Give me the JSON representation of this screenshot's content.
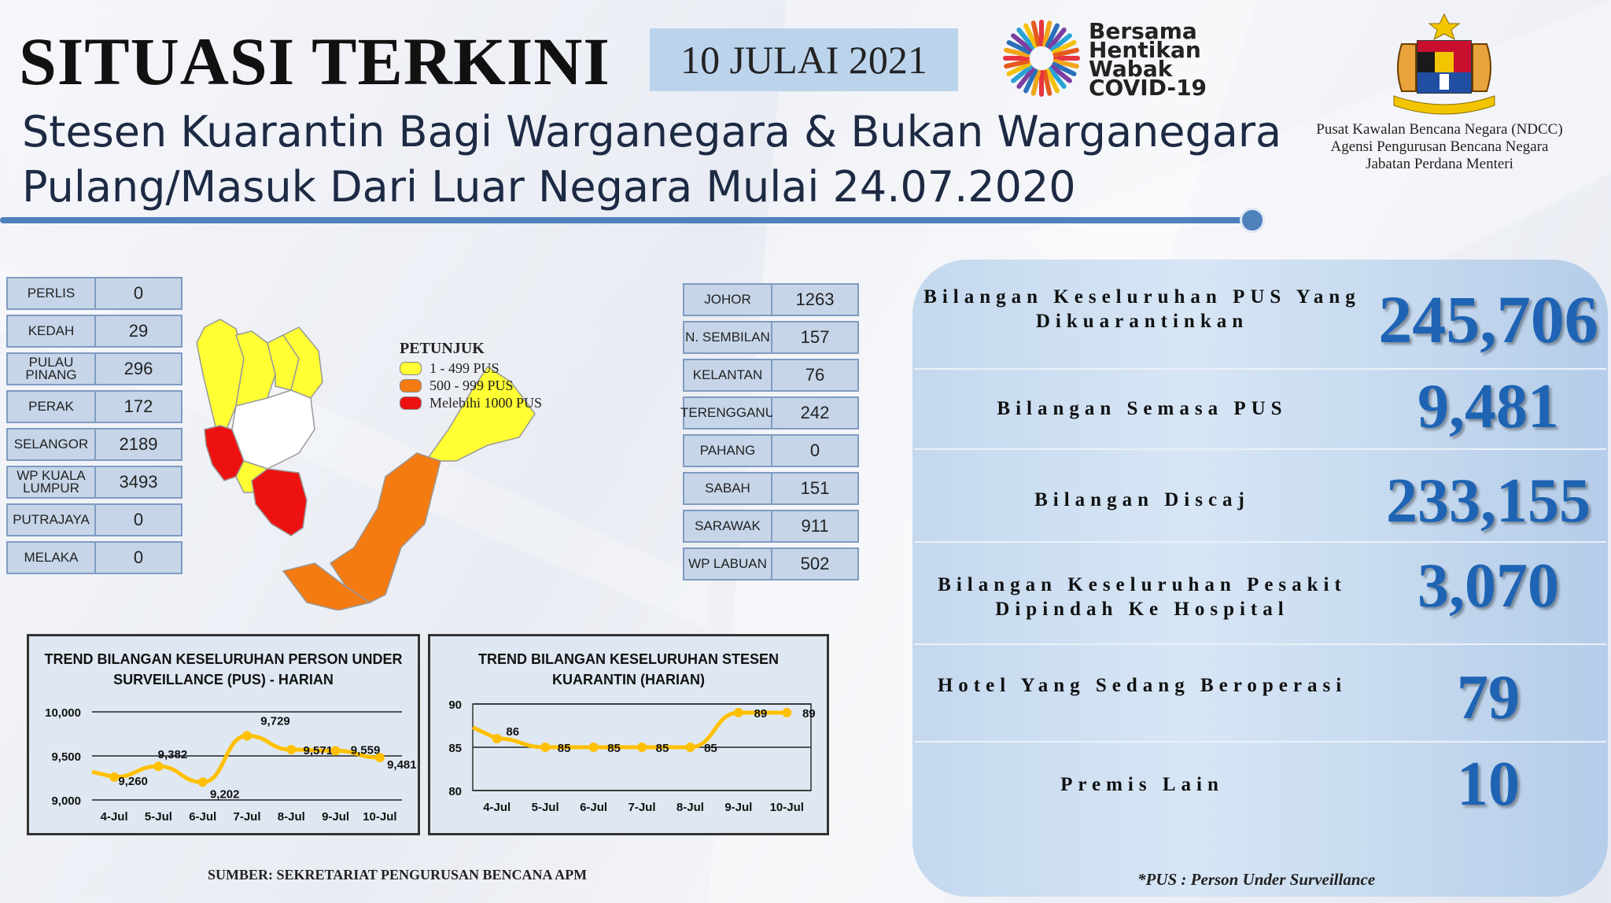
{
  "header": {
    "title": "SITUASI TERKINI",
    "date": "10 JULAI 2021",
    "subtitle_line1": "Stesen Kuarantin Bagi Warganegara & Bukan Warganegara",
    "subtitle_line2": "Pulang/Masuk Dari Luar Negara Mulai 24.07.2020"
  },
  "campaign": {
    "line1": "Bersama",
    "line2": "Hentikan",
    "line3": "Wabak",
    "line4": "COVID-19"
  },
  "agency": {
    "line1": "Pusat Kawalan Bencana Negara (NDCC)",
    "line2": "Agensi Pengurusan Bencana Negara",
    "line3": "Jabatan Perdana Menteri"
  },
  "states_left": [
    {
      "name": "PERLIS",
      "value": "0"
    },
    {
      "name": "KEDAH",
      "value": "29"
    },
    {
      "name": "PULAU PINANG",
      "value": "296"
    },
    {
      "name": "PERAK",
      "value": "172"
    },
    {
      "name": "SELANGOR",
      "value": "2189"
    },
    {
      "name": "WP KUALA LUMPUR",
      "value": "3493"
    },
    {
      "name": "PUTRAJAYA",
      "value": "0"
    },
    {
      "name": "MELAKA",
      "value": "0"
    }
  ],
  "states_right": [
    {
      "name": "JOHOR",
      "value": "1263"
    },
    {
      "name": "N. SEMBILAN",
      "value": "157"
    },
    {
      "name": "KELANTAN",
      "value": "76"
    },
    {
      "name": "TERENGGANU",
      "value": "242"
    },
    {
      "name": "PAHANG",
      "value": "0"
    },
    {
      "name": "SABAH",
      "value": "151"
    },
    {
      "name": "SARAWAK",
      "value": "911"
    },
    {
      "name": "WP LABUAN",
      "value": "502"
    }
  ],
  "legend": {
    "title": "PETUNJUK",
    "items": [
      {
        "label": "1 - 499 PUS",
        "color": "#ffff33"
      },
      {
        "label": "500 - 999 PUS",
        "color": "#f47b12"
      },
      {
        "label": "Melebihi 1000 PUS",
        "color": "#ee1111"
      }
    ]
  },
  "stats": [
    {
      "label": "Bilangan Keseluruhan PUS Yang Dikuarantinkan",
      "value": "245,706"
    },
    {
      "label": "Bilangan Semasa PUS",
      "value": "9,481"
    },
    {
      "label": "Bilangan Discaj",
      "value": "233,155"
    },
    {
      "label": "Bilangan Keseluruhan Pesakit Dipindah Ke Hospital",
      "value": "3,070"
    },
    {
      "label": "Hotel Yang Sedang Beroperasi",
      "value": "79"
    },
    {
      "label": "Premis Lain",
      "value": "10"
    }
  ],
  "chart_data": [
    {
      "type": "line",
      "title": "TREND BILANGAN KESELURUHAN PERSON UNDER SURVEILLANCE (PUS) - HARIAN",
      "categories": [
        "4-Jul",
        "5-Jul",
        "6-Jul",
        "7-Jul",
        "8-Jul",
        "9-Jul",
        "10-Jul"
      ],
      "series": [
        {
          "values": [
            9260,
            9382,
            9202,
            9729,
            9571,
            9559,
            9481
          ]
        }
      ],
      "data_labels": [
        "9,260",
        "9,382",
        "9,202",
        "9,729",
        "9,571",
        "9,559",
        "9,481"
      ],
      "ylim": [
        9000,
        10000
      ],
      "yticks": [
        "9,000",
        "9,500",
        "10,000"
      ],
      "line_color": "#ffc000"
    },
    {
      "type": "line",
      "title": "TREND BILANGAN KESELURUHAN STESEN KUARANTIN (HARIAN)",
      "categories": [
        "4-Jul",
        "5-Jul",
        "6-Jul",
        "7-Jul",
        "8-Jul",
        "9-Jul",
        "10-Jul"
      ],
      "series": [
        {
          "values": [
            86,
            85,
            85,
            85,
            85,
            89,
            89
          ]
        }
      ],
      "data_labels": [
        "86",
        "85",
        "85",
        "85",
        "85",
        "89",
        "89"
      ],
      "ylim": [
        80,
        90
      ],
      "yticks": [
        "80",
        "85",
        "90"
      ],
      "line_color": "#ffc000"
    }
  ],
  "footer": {
    "source": "SUMBER: SEKRETARIAT PENGURUSAN BENCANA APM",
    "note": "*PUS : Person Under Surveillance"
  }
}
